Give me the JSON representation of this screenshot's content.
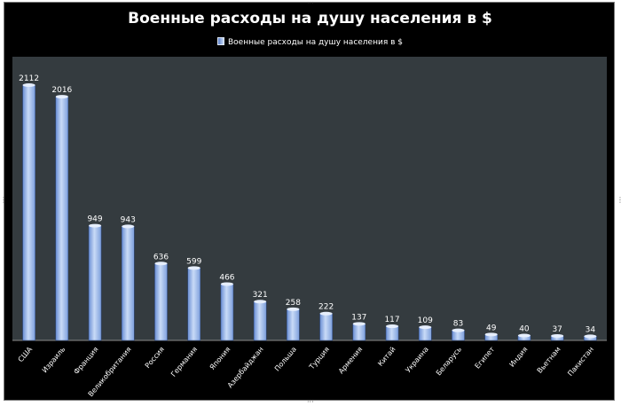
{
  "chart_data": {
    "type": "bar",
    "title": "Военные расходы на душу населения в $",
    "legend": {
      "position": "top",
      "entries": [
        "Военные расходы на душу населения в $"
      ]
    },
    "series": [
      {
        "name": "Военные расходы на душу населения в $",
        "values": [
          2112,
          2016,
          949,
          943,
          636,
          599,
          466,
          321,
          258,
          222,
          137,
          117,
          109,
          83,
          49,
          40,
          37,
          34
        ],
        "color": "#9fbef0"
      }
    ],
    "categories": [
      "США",
      "Израиль",
      "Франция",
      "Великобритания",
      "Россия",
      "Германия",
      "Япония",
      "Азербайджан",
      "Польша",
      "Турция",
      "Армения",
      "Китай",
      "Украина",
      "Беларусь",
      "Египет",
      "Индия",
      "Вьетнам",
      "Пакистан"
    ],
    "data_labels": true,
    "ylim": [
      0,
      2200
    ],
    "grid": false,
    "colors": {
      "background": "#000000",
      "plot_area": "#343b3f",
      "bar_light": "#c9dbf7",
      "bar_dark": "#5a7fc8",
      "text": "#ffffff"
    }
  }
}
